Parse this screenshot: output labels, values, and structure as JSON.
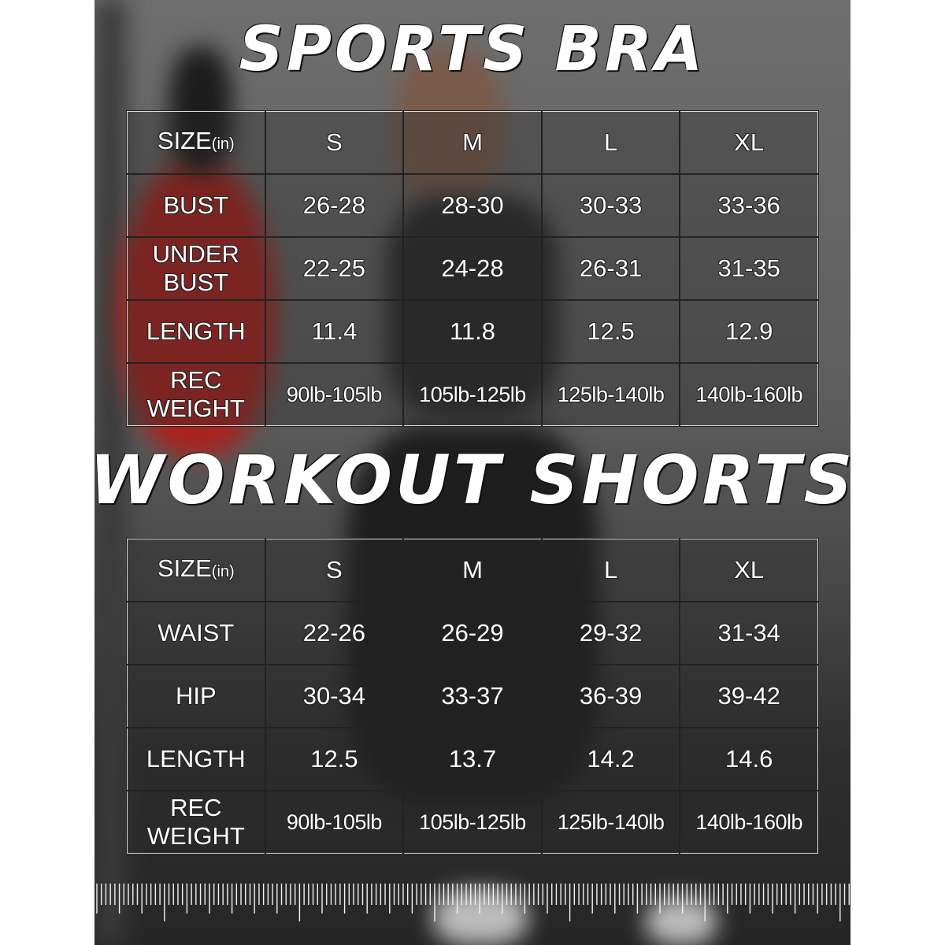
{
  "sports_bra": {
    "title": "SPORTS BRA",
    "header": {
      "label": "SIZE",
      "unit": "(in)",
      "sizes": [
        "S",
        "M",
        "L",
        "XL"
      ]
    },
    "rows": [
      {
        "label": "BUST",
        "values": [
          "26-28",
          "28-30",
          "30-33",
          "33-36"
        ]
      },
      {
        "label": "UNDER BUST",
        "values": [
          "22-25",
          "24-28",
          "26-31",
          "31-35"
        ]
      },
      {
        "label": "LENGTH",
        "values": [
          "11.4",
          "11.8",
          "12.5",
          "12.9"
        ]
      },
      {
        "label": "REC WEIGHT",
        "values": [
          "90lb-105lb",
          "105lb-125lb",
          "125lb-140lb",
          "140lb-160lb"
        ]
      }
    ]
  },
  "workout_shorts": {
    "title": "WORKOUT SHORTS",
    "header": {
      "label": "SIZE",
      "unit": "(in)",
      "sizes": [
        "S",
        "M",
        "L",
        "XL"
      ]
    },
    "rows": [
      {
        "label": "WAIST",
        "values": [
          "22-26",
          "26-29",
          "29-32",
          "31-34"
        ]
      },
      {
        "label": "HIP",
        "values": [
          "30-34",
          "33-37",
          "36-39",
          "39-42"
        ]
      },
      {
        "label": "LENGTH",
        "values": [
          "12.5",
          "13.7",
          "14.2",
          "14.6"
        ]
      },
      {
        "label": "REC WEIGHT",
        "values": [
          "90lb-105lb",
          "105lb-125lb",
          "125lb-140lb",
          "140lb-160lb"
        ]
      }
    ]
  },
  "colors": {
    "text": "#ffffff",
    "punching_bag": "#b0201c",
    "background": "#5a5a5a"
  }
}
